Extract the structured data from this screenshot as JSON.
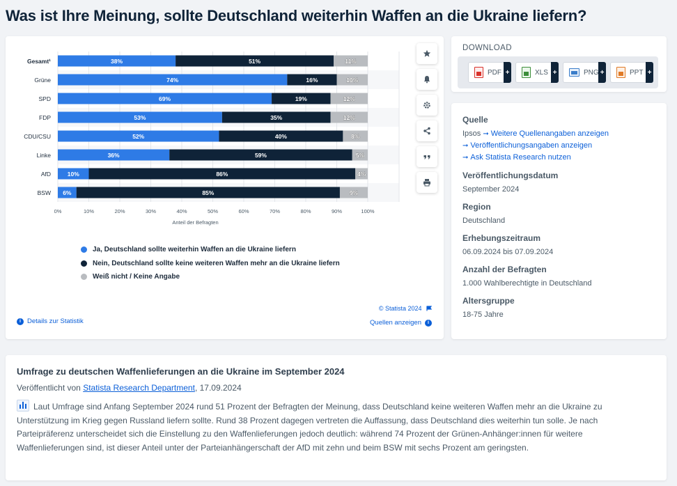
{
  "page": {
    "title": "Was ist Ihre Meinung, sollte Deutschland weiterhin Waffen an die Ukraine liefern?"
  },
  "toolbar": {
    "icons": [
      "star-icon",
      "bell-icon",
      "gear-icon",
      "share-icon",
      "quote-icon",
      "print-icon"
    ]
  },
  "colors": {
    "yes": "#2e7be6",
    "no": "#0f2338",
    "unknown": "#b9bcc0",
    "accent": "#0b5fd8"
  },
  "chart_data": {
    "type": "bar",
    "orientation": "horizontal",
    "stacked": true,
    "categories": [
      "Gesamt¹",
      "Grüne",
      "SPD",
      "FDP",
      "CDU/CSU",
      "Linke",
      "AfD",
      "BSW"
    ],
    "series": [
      {
        "name": "Ja, Deutschland sollte weiterhin Waffen an die Ukraine liefern",
        "values": [
          38,
          74,
          69,
          53,
          52,
          36,
          10,
          6
        ]
      },
      {
        "name": "Nein, Deutschland sollte keine weiteren Waffen mehr an die Ukraine liefern",
        "values": [
          51,
          16,
          19,
          35,
          40,
          59,
          86,
          85
        ]
      },
      {
        "name": "Weiß nicht / Keine Angabe",
        "values": [
          11,
          10,
          12,
          12,
          8,
          5,
          4,
          9
        ]
      }
    ],
    "xlabel": "Anteil der Befragten",
    "xlim": [
      0,
      100
    ],
    "xticks": [
      "0%",
      "10%",
      "20%",
      "30%",
      "40%",
      "50%",
      "60%",
      "70%",
      "80%",
      "90%",
      "100%"
    ],
    "grid": true,
    "legend_position": "bottom"
  },
  "chart_footer": {
    "copyright": "© Statista 2024",
    "details_label": "Details zur Statistik",
    "sources_label": "Quellen anzeigen"
  },
  "download": {
    "title": "DOWNLOAD",
    "buttons": [
      {
        "label": "PDF",
        "color": "#d9322b"
      },
      {
        "label": "XLS",
        "color": "#3c8d3a"
      },
      {
        "label": "PNG",
        "color": "#3a7dc9"
      },
      {
        "label": "PPT",
        "color": "#e07a26"
      }
    ],
    "plus": "+"
  },
  "info": {
    "source_head": "Quelle",
    "source_name": "Ipsos",
    "source_link1": "Weitere Quellenangaben anzeigen",
    "source_link2": "Veröffentlichungsangaben anzeigen",
    "source_link3": "Ask Statista Research nutzen",
    "date_head": "Veröffentlichungsdatum",
    "date_val": "September 2024",
    "region_head": "Region",
    "region_val": "Deutschland",
    "period_head": "Erhebungszeitraum",
    "period_val": "06.09.2024 bis 07.09.2024",
    "count_head": "Anzahl der Befragten",
    "count_val": "1.000 Wahlberechtigte in Deutschland",
    "age_head": "Altersgruppe",
    "age_val": "18-75 Jahre"
  },
  "article": {
    "title": "Umfrage zu deutschen Waffenlieferungen an die Ukraine im September 2024",
    "published_prefix": "Veröffentlicht von",
    "author": "Statista Research Department",
    "date": ", 17.09.2024",
    "body": "Laut Umfrage sind Anfang September 2024 rund 51 Prozent der Befragten der Meinung, dass Deutschland keine weiteren Waffen mehr an die Ukraine zu Unterstützung im Krieg gegen Russland liefern sollte. Rund 38 Prozent dagegen vertreten die Auffassung, dass Deutschland dies weiterhin tun solle. Je nach Parteipräferenz unterscheidet sich die Einstellung zu den Waffenlieferungen jedoch deutlich: während 74 Prozent der Grünen-Anhänger:innen für weitere Waffenlieferungen sind, ist dieser Anteil unter der Parteianhängerschaft der AfD mit zehn und beim BSW mit sechs Prozent am geringsten."
  }
}
